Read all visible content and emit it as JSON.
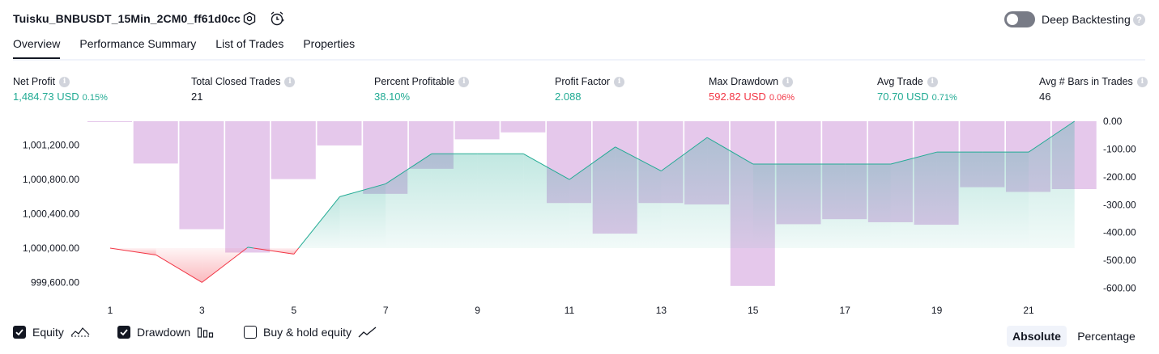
{
  "header": {
    "title": "Tuisku_BNBUSDT_15Min_2CM0_ff61d0cc",
    "deep_backtesting_label": "Deep Backtesting",
    "help_glyph": "?"
  },
  "tabs": [
    {
      "label": "Overview",
      "active": true
    },
    {
      "label": "Performance Summary",
      "active": false
    },
    {
      "label": "List of Trades",
      "active": false
    },
    {
      "label": "Properties",
      "active": false
    }
  ],
  "metrics": [
    {
      "label": "Net Profit",
      "value": "1,484.73 USD",
      "pct": "0.15%",
      "color": "green"
    },
    {
      "label": "Total Closed Trades",
      "value": "21",
      "pct": "",
      "color": "dark"
    },
    {
      "label": "Percent Profitable",
      "value": "38.10%",
      "pct": "",
      "color": "green"
    },
    {
      "label": "Profit Factor",
      "value": "2.088",
      "pct": "",
      "color": "green"
    },
    {
      "label": "Max Drawdown",
      "value": "592.82 USD",
      "pct": "0.06%",
      "color": "red"
    },
    {
      "label": "Avg Trade",
      "value": "70.70 USD",
      "pct": "0.71%",
      "color": "green"
    },
    {
      "label": "Avg # Bars in Trades",
      "value": "46",
      "pct": "",
      "color": "dark"
    }
  ],
  "info_glyph": "i",
  "chart_data": {
    "type": "line",
    "x": [
      1,
      2,
      3,
      4,
      5,
      6,
      7,
      8,
      9,
      10,
      11,
      12,
      13,
      14,
      15,
      16,
      17,
      18,
      19,
      20,
      21,
      22
    ],
    "x_tick_labels": [
      "1",
      "3",
      "5",
      "7",
      "9",
      "11",
      "13",
      "15",
      "17",
      "19",
      "21"
    ],
    "left_axis": {
      "tick_labels": [
        "999,600.00",
        "1,000,000.00",
        "1,000,400.00",
        "1,000,800.00",
        "1,001,200.00"
      ],
      "ylim": [
        999500,
        1001480
      ]
    },
    "right_axis": {
      "tick_labels": [
        "0.00",
        "-100.00",
        "-200.00",
        "-300.00",
        "-400.00",
        "-500.00",
        "-600.00"
      ],
      "ylim": [
        -610,
        0
      ]
    },
    "baseline": 1000000,
    "series": [
      {
        "name": "Equity",
        "axis": "left",
        "color_up": "#22ab94",
        "color_down": "#f23645",
        "values": [
          1000000,
          999920,
          999600,
          1000010,
          999930,
          1000600,
          1000750,
          1001100,
          1001100,
          1001100,
          1000800,
          1001180,
          1000900,
          1001290,
          1000980,
          1000980,
          1000980,
          1000980,
          1001120,
          1001120,
          1001120,
          1001480
        ]
      },
      {
        "name": "Drawdown",
        "axis": "right",
        "type": "bar",
        "color": "#e1bee7",
        "values": [
          0,
          -152,
          -388,
          -472,
          -208,
          -87,
          -261,
          -171,
          -65,
          -40,
          -294,
          -404,
          -294,
          -299,
          -592,
          -370,
          -352,
          -363,
          -372,
          -237,
          -254,
          -244
        ]
      }
    ]
  },
  "legend": [
    {
      "label": "Equity",
      "checked": true,
      "icon": "equity-line-icon"
    },
    {
      "label": "Drawdown",
      "checked": true,
      "icon": "drawdown-bars-icon"
    },
    {
      "label": "Buy & hold equity",
      "checked": false,
      "icon": "buy-hold-line-icon"
    }
  ],
  "scale_modes": [
    {
      "label": "Absolute",
      "active": true
    },
    {
      "label": "Percentage",
      "active": false
    }
  ]
}
